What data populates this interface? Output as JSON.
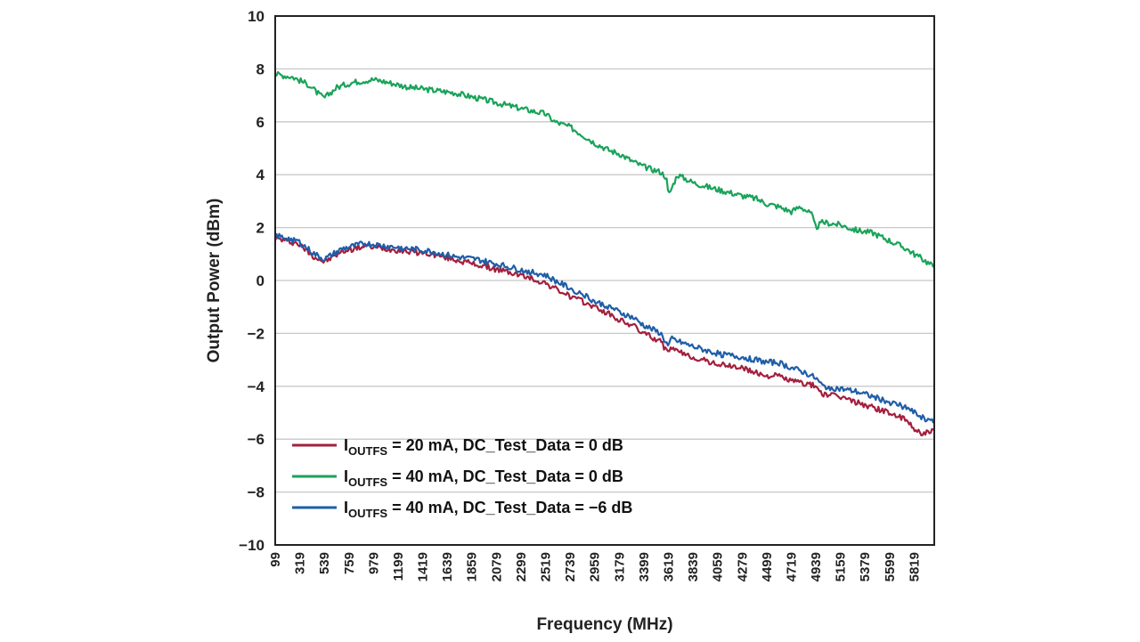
{
  "chart_data": {
    "type": "line",
    "title": "",
    "xlabel": "Frequency (MHz)",
    "ylabel": "Output Power (dBm)",
    "ylim": [
      -10,
      10
    ],
    "yticks": [
      "10",
      "8",
      "6",
      "4",
      "2",
      "0",
      "−2",
      "−4",
      "−6",
      "−8",
      "−10"
    ],
    "xticks": [
      "99",
      "319",
      "539",
      "759",
      "979",
      "1199",
      "1419",
      "1639",
      "1859",
      "2079",
      "2299",
      "2519",
      "2739",
      "2959",
      "3179",
      "3399",
      "3619",
      "3839",
      "4059",
      "4279",
      "4499",
      "4719",
      "4939",
      "5159",
      "5379",
      "5599",
      "5819"
    ],
    "x_range": [
      99,
      5999
    ],
    "grid": "horizontal",
    "legend_position": "bottom-left",
    "series": [
      {
        "legend_main": "I",
        "legend_sub": "OUTFS",
        "legend_rest": " = 20 mA, DC_Test_Data = 0 dB",
        "color": "#a3203f",
        "x": [
          99,
          300,
          450,
          539,
          700,
          900,
          1100,
          1300,
          1500,
          1700,
          1900,
          2100,
          2300,
          2519,
          2600,
          2739,
          2850,
          2959,
          3100,
          3179,
          3300,
          3399,
          3550,
          3619,
          3650,
          3700,
          3839,
          4000,
          4100,
          4279,
          4400,
          4499,
          4600,
          4719,
          4850,
          4939,
          5000,
          5159,
          5300,
          5450,
          5600,
          5750,
          5819,
          5900,
          5999
        ],
        "y": [
          1.6,
          1.4,
          0.9,
          0.7,
          1.1,
          1.3,
          1.2,
          1.1,
          1.0,
          0.8,
          0.6,
          0.4,
          0.2,
          -0.1,
          -0.3,
          -0.6,
          -0.8,
          -1.0,
          -1.3,
          -1.5,
          -1.7,
          -2.0,
          -2.3,
          -2.8,
          -2.5,
          -2.7,
          -2.9,
          -3.1,
          -3.2,
          -3.3,
          -3.5,
          -3.6,
          -3.6,
          -3.8,
          -3.9,
          -4.0,
          -4.3,
          -4.4,
          -4.6,
          -4.8,
          -5.0,
          -5.3,
          -5.6,
          -5.8,
          -5.7
        ]
      },
      {
        "legend_main": "I",
        "legend_sub": "OUTFS",
        "legend_rest": " = 40 mA, DC_Test_Data = 0 dB",
        "color": "#1aa35a",
        "x": [
          99,
          250,
          400,
          500,
          539,
          650,
          800,
          979,
          1100,
          1300,
          1500,
          1700,
          1900,
          2100,
          2300,
          2519,
          2600,
          2739,
          2850,
          2959,
          3100,
          3179,
          3300,
          3399,
          3550,
          3600,
          3619,
          3700,
          3839,
          4000,
          4100,
          4279,
          4400,
          4499,
          4600,
          4719,
          4800,
          4900,
          4939,
          5000,
          5159,
          5300,
          5450,
          5600,
          5750,
          5819,
          5900,
          5999
        ],
        "y": [
          7.8,
          7.7,
          7.4,
          7.0,
          6.9,
          7.3,
          7.5,
          7.6,
          7.5,
          7.3,
          7.2,
          7.1,
          6.9,
          6.7,
          6.5,
          6.3,
          6.0,
          5.8,
          5.5,
          5.2,
          4.9,
          4.8,
          4.5,
          4.3,
          4.1,
          3.9,
          3.2,
          4.0,
          3.7,
          3.5,
          3.4,
          3.2,
          3.1,
          2.9,
          2.8,
          2.6,
          2.8,
          2.5,
          2.0,
          2.2,
          2.1,
          1.9,
          1.8,
          1.5,
          1.2,
          1.0,
          0.8,
          0.5
        ]
      },
      {
        "legend_main": "I",
        "legend_sub": "OUTFS",
        "legend_rest": " = 40 mA, DC_Test_Data = −6 dB",
        "color": "#1f5ea8",
        "x": [
          99,
          300,
          450,
          539,
          700,
          900,
          1100,
          1300,
          1500,
          1700,
          1900,
          2100,
          2300,
          2519,
          2600,
          2739,
          2850,
          2959,
          3100,
          3179,
          3300,
          3399,
          3550,
          3619,
          3650,
          3700,
          3839,
          4000,
          4100,
          4279,
          4400,
          4499,
          4600,
          4719,
          4850,
          4939,
          5000,
          5159,
          5300,
          5450,
          5600,
          5750,
          5819,
          5900,
          5999
        ],
        "y": [
          1.7,
          1.5,
          1.0,
          0.8,
          1.2,
          1.4,
          1.3,
          1.2,
          1.1,
          0.9,
          0.8,
          0.6,
          0.4,
          0.2,
          0.0,
          -0.3,
          -0.5,
          -0.8,
          -1.0,
          -1.2,
          -1.4,
          -1.7,
          -2.0,
          -2.5,
          -2.2,
          -2.3,
          -2.5,
          -2.7,
          -2.8,
          -2.9,
          -3.0,
          -3.1,
          -3.1,
          -3.3,
          -3.5,
          -3.7,
          -4.0,
          -4.1,
          -4.2,
          -4.4,
          -4.6,
          -4.8,
          -5.0,
          -5.2,
          -5.3
        ]
      }
    ]
  }
}
